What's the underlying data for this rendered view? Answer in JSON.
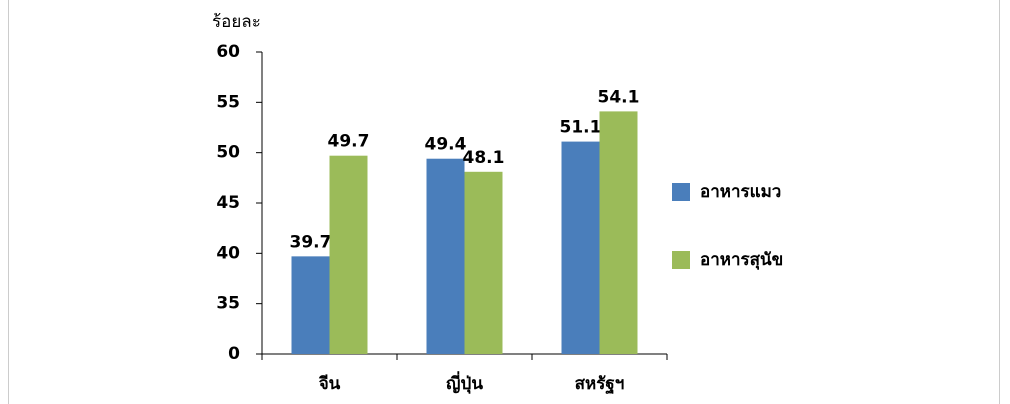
{
  "chart_data": {
    "type": "bar",
    "y_label": "ร้อยละ",
    "categories": [
      "จีน",
      "ญี่ปุ่น",
      "สหรัฐฯ"
    ],
    "series": [
      {
        "name": "อาหารแมว",
        "color": "#4a7ebb",
        "values": [
          39.7,
          49.4,
          51.1
        ]
      },
      {
        "name": "อาหารสุนัข",
        "color": "#9bbb59",
        "values": [
          49.7,
          48.1,
          54.1
        ]
      }
    ],
    "ylim": [
      30,
      60
    ],
    "yticks": [
      {
        "value": 30,
        "label": "0"
      },
      35,
      40,
      45,
      50,
      55,
      60
    ],
    "grid": false,
    "legend": "right"
  }
}
